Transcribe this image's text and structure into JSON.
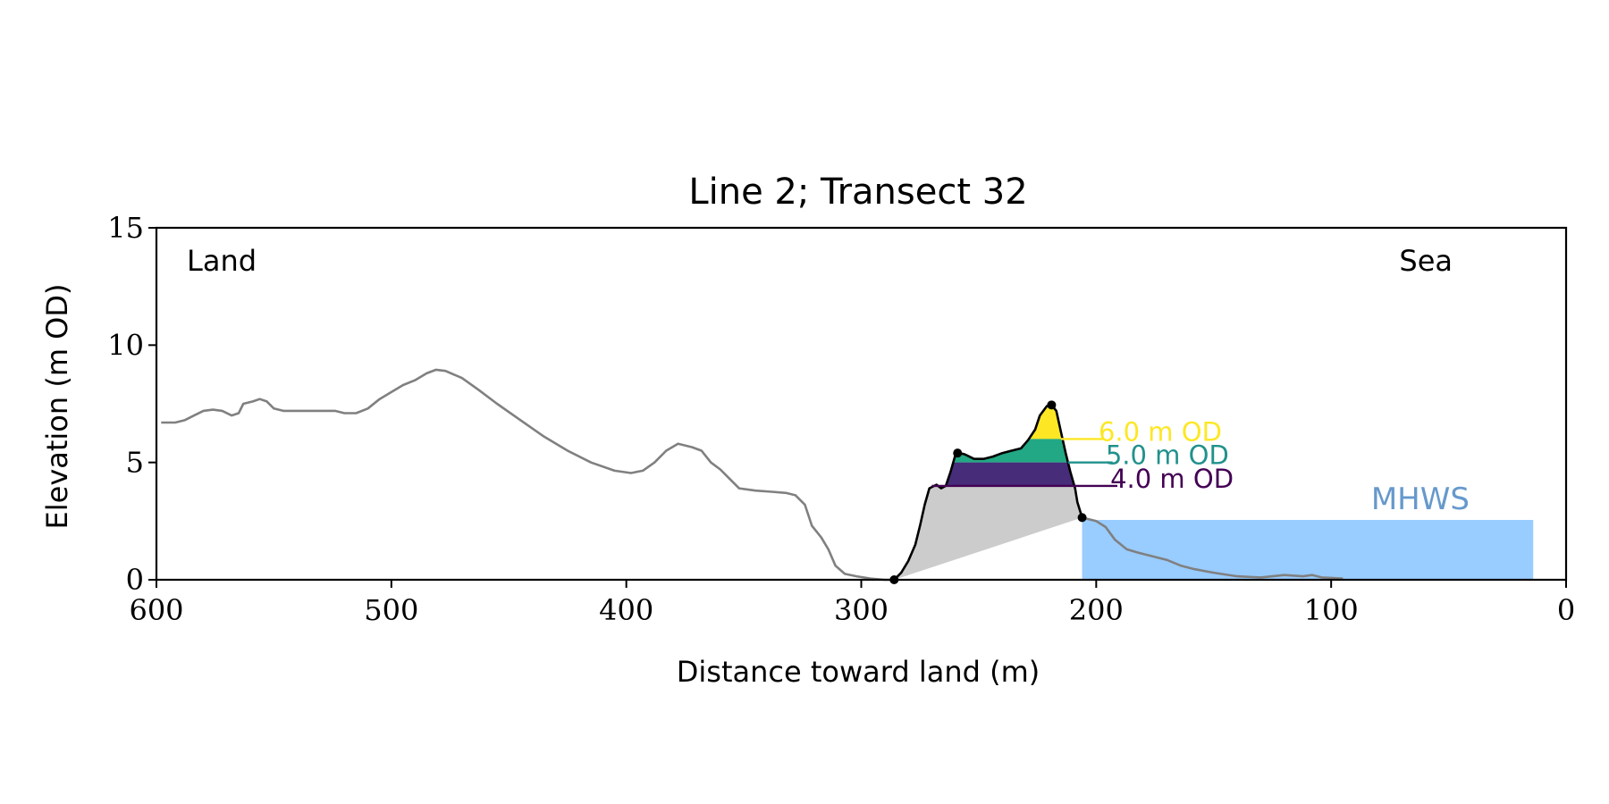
{
  "chart_data": {
    "type": "line",
    "title": "Line 2; Transect 32",
    "xlabel": "Distance toward land (m)",
    "ylabel": "Elevation (m OD)",
    "xlim": [
      600,
      0
    ],
    "ylim": [
      0,
      15
    ],
    "xticks": [
      600,
      500,
      400,
      300,
      200,
      100,
      0
    ],
    "yticks": [
      0,
      5,
      10,
      15
    ],
    "grid": false,
    "annotations": {
      "left": "Land",
      "right": "Sea"
    },
    "colors": {
      "profile": "#808080",
      "dune": "#000000",
      "dune_fill": "#cccccc",
      "sea": "#99ccff",
      "mhws_text": "#6699cc"
    },
    "profile": [
      [
        598,
        6.7
      ],
      [
        592,
        6.7
      ],
      [
        588,
        6.8
      ],
      [
        584,
        7.0
      ],
      [
        580,
        7.2
      ],
      [
        576,
        7.25
      ],
      [
        572,
        7.2
      ],
      [
        568,
        7.0
      ],
      [
        565,
        7.1
      ],
      [
        563,
        7.5
      ],
      [
        559,
        7.6
      ],
      [
        556,
        7.7
      ],
      [
        553,
        7.6
      ],
      [
        550,
        7.3
      ],
      [
        546,
        7.2
      ],
      [
        540,
        7.2
      ],
      [
        534,
        7.2
      ],
      [
        530,
        7.2
      ],
      [
        524,
        7.2
      ],
      [
        520,
        7.1
      ],
      [
        515,
        7.1
      ],
      [
        510,
        7.3
      ],
      [
        505,
        7.7
      ],
      [
        500,
        8.0
      ],
      [
        495,
        8.3
      ],
      [
        490,
        8.5
      ],
      [
        485,
        8.8
      ],
      [
        481,
        8.95
      ],
      [
        477,
        8.9
      ],
      [
        470,
        8.6
      ],
      [
        463,
        8.1
      ],
      [
        455,
        7.5
      ],
      [
        445,
        6.8
      ],
      [
        435,
        6.1
      ],
      [
        425,
        5.5
      ],
      [
        415,
        5.0
      ],
      [
        405,
        4.65
      ],
      [
        398,
        4.55
      ],
      [
        393,
        4.65
      ],
      [
        388,
        5.0
      ],
      [
        383,
        5.5
      ],
      [
        378,
        5.8
      ],
      [
        372,
        5.65
      ],
      [
        368,
        5.5
      ],
      [
        364,
        5.0
      ],
      [
        360,
        4.7
      ],
      [
        356,
        4.3
      ],
      [
        352,
        3.9
      ],
      [
        345,
        3.8
      ],
      [
        338,
        3.75
      ],
      [
        332,
        3.7
      ],
      [
        328,
        3.6
      ],
      [
        324,
        3.2
      ],
      [
        321,
        2.3
      ],
      [
        317,
        1.8
      ],
      [
        314,
        1.3
      ],
      [
        311,
        0.6
      ],
      [
        307,
        0.25
      ],
      [
        302,
        0.15
      ],
      [
        296,
        0.05
      ],
      [
        290,
        0.0
      ],
      [
        285,
        0.0
      ]
    ],
    "dune_profile": [
      [
        286,
        0.0
      ],
      [
        283,
        0.3
      ],
      [
        280,
        0.8
      ],
      [
        277,
        1.5
      ],
      [
        275,
        2.3
      ],
      [
        273,
        3.2
      ],
      [
        271,
        3.9
      ],
      [
        268,
        4.05
      ],
      [
        266,
        3.9
      ],
      [
        264,
        4.0
      ],
      [
        262,
        4.6
      ],
      [
        260,
        5.3
      ],
      [
        258,
        5.4
      ],
      [
        256,
        5.35
      ],
      [
        252,
        5.15
      ],
      [
        248,
        5.15
      ],
      [
        244,
        5.25
      ],
      [
        240,
        5.4
      ],
      [
        236,
        5.5
      ],
      [
        232,
        5.6
      ],
      [
        229,
        5.95
      ],
      [
        226,
        6.4
      ],
      [
        224,
        7.0
      ],
      [
        221,
        7.4
      ],
      [
        219,
        7.45
      ],
      [
        217,
        7.2
      ],
      [
        215,
        6.3
      ],
      [
        213,
        5.4
      ],
      [
        211,
        4.6
      ],
      [
        209,
        3.9
      ],
      [
        208,
        3.3
      ],
      [
        206,
        2.65
      ]
    ],
    "dune_markers": [
      [
        286,
        0.0
      ],
      [
        259,
        5.4
      ],
      [
        219,
        7.45
      ],
      [
        206,
        2.65
      ]
    ],
    "foreshore": [
      [
        206,
        2.65
      ],
      [
        200,
        2.5
      ],
      [
        196,
        2.25
      ],
      [
        192,
        1.7
      ],
      [
        187,
        1.3
      ],
      [
        182,
        1.15
      ],
      [
        176,
        1.0
      ],
      [
        170,
        0.85
      ],
      [
        164,
        0.6
      ],
      [
        158,
        0.45
      ],
      [
        150,
        0.3
      ],
      [
        140,
        0.15
      ],
      [
        130,
        0.1
      ],
      [
        125,
        0.15
      ],
      [
        120,
        0.2
      ],
      [
        112,
        0.15
      ],
      [
        108,
        0.2
      ],
      [
        104,
        0.1
      ],
      [
        100,
        0.08
      ],
      [
        95,
        0.05
      ]
    ],
    "dune_levels": [
      {
        "level": 6.0,
        "label": "6.0 m OD",
        "color": "#fde725"
      },
      {
        "level": 5.0,
        "label": "5.0 m OD",
        "color": "#21918c"
      },
      {
        "level": 4.0,
        "label": "4.0 m OD",
        "color": "#440154"
      }
    ],
    "band_colors": {
      "6": "#fde725",
      "5": "#22a884",
      "4": "#472c7a"
    },
    "mhws": {
      "label": "MHWS",
      "level": 2.55,
      "x_start": 206,
      "x_end": 14
    }
  }
}
